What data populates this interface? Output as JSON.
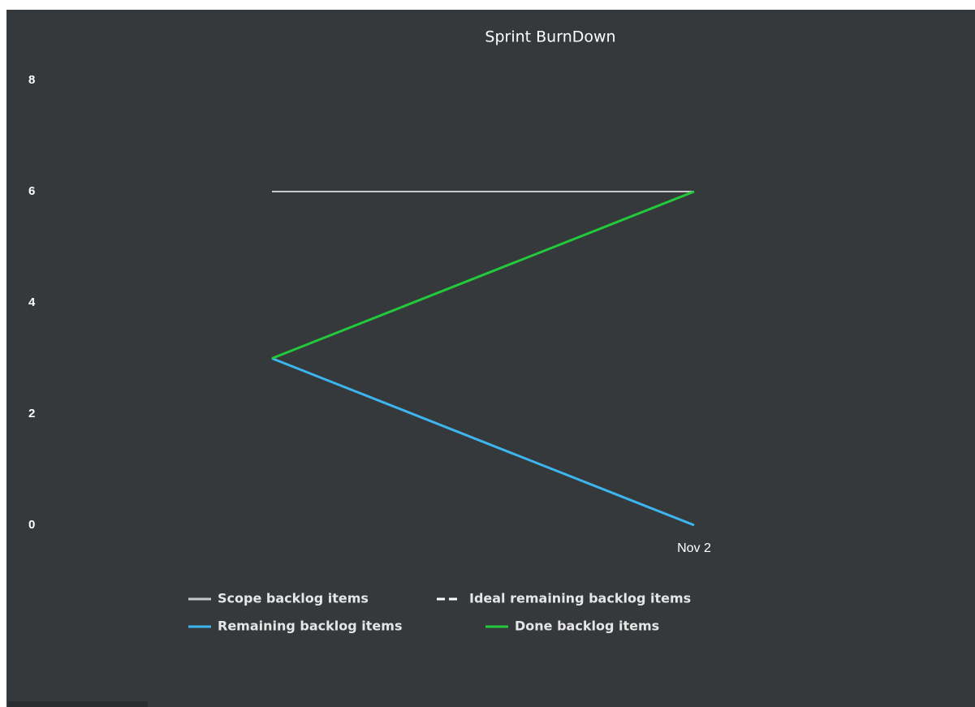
{
  "chart_data": {
    "type": "line",
    "title": "Sprint BurnDown",
    "categories": [
      null,
      "Nov 2"
    ],
    "series": [
      {
        "name": "Scope backlog items",
        "color": "#c8c8c8",
        "values": [
          6,
          6
        ]
      },
      {
        "name": "Ideal remaining backlog items",
        "color": "#ffffff",
        "dashed": true,
        "values": [
          null,
          null
        ]
      },
      {
        "name": "Remaining backlog items",
        "color": "#3db5ee",
        "values": [
          3,
          0
        ]
      },
      {
        "name": "Done backlog items",
        "color": "#22c93a",
        "values": [
          3,
          6
        ]
      }
    ],
    "ylim": [
      0,
      8
    ],
    "yticks": [
      0,
      2,
      4,
      6,
      8
    ],
    "grid": false
  }
}
